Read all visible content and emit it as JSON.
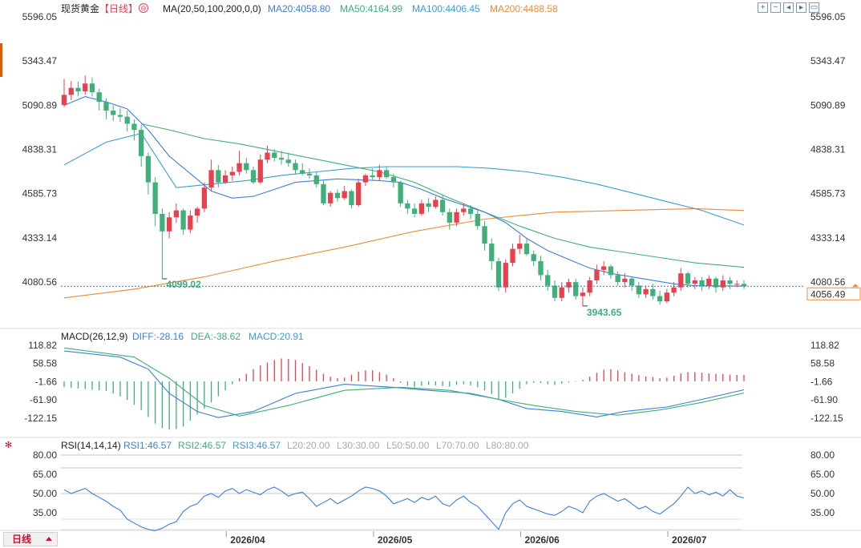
{
  "header": {
    "instrument": "现货黄金",
    "period_tag": "【日线】",
    "ma_params": "MA(20,50,100,200,0,0)",
    "ma20_label": "MA20:4058.80",
    "ma50_label": "MA50:4164.99",
    "ma100_label": "MA100:4406.45",
    "ma200_label": "MA200:4488.58"
  },
  "toolbar": [
    "plus-icon",
    "minus-icon",
    "left-icon",
    "right-icon",
    "fit-icon"
  ],
  "price_axis": {
    "ticks": [
      "5596.05",
      "5343.47",
      "5090.89",
      "4838.31",
      "4585.73",
      "4333.14",
      "4080.56"
    ],
    "current_price": "4056.49"
  },
  "annotations": {
    "low1": "4099.02",
    "low2": "3943.65"
  },
  "macd": {
    "params": "MACD(26,12,9)",
    "diff_label": "DIFF:-28.16",
    "dea_label": "DEA:-38.62",
    "macd_label": "MACD:20.91",
    "ticks": [
      "118.82",
      "58.58",
      "-1.66",
      "-61.90",
      "-122.15"
    ]
  },
  "rsi": {
    "params": "RSI(14,14,14)",
    "rsi1_label": "RSI1:46.57",
    "rsi2_label": "RSI2:46.57",
    "rsi3_label": "RSI3:46.57",
    "l20": "L20:20.00",
    "l30": "L30:30.00",
    "l50": "L50:50.00",
    "l70": "L70:70.00",
    "l80": "L80:80.00",
    "ticks": [
      "80.00",
      "65.00",
      "50.00",
      "35.00"
    ]
  },
  "x_axis": {
    "labels": [
      "2026/04",
      "2026/05",
      "2026/06",
      "2026/07"
    ]
  },
  "period_button": "日线",
  "colors": {
    "up": "#e8414e",
    "down": "#3fb07a",
    "ma20": "#3d7fd9",
    "ma50": "#3fae78",
    "ma100": "#3d9cd0",
    "ma200": "#ec8a3a",
    "diff": "#3d7fd9",
    "dea": "#3fae78",
    "rsi": "#3d7fd9"
  },
  "chart_data": [
    {
      "type": "candlestick",
      "title": "现货黄金 日线",
      "ylim": [
        3943.65,
        5596.05
      ],
      "y_ticks": [
        5596.05,
        5343.47,
        5090.89,
        4838.31,
        4585.73,
        4333.14,
        4080.56
      ],
      "x_labels": [
        "2026/04",
        "2026/05",
        "2026/06",
        "2026/07"
      ],
      "marked_lows": [
        4099.02,
        3943.65
      ],
      "last_price": 4056.49,
      "candles": [
        [
          5092,
          5150,
          5240,
          5080
        ],
        [
          5150,
          5190,
          5230,
          5120
        ],
        [
          5190,
          5170,
          5225,
          5140
        ],
        [
          5170,
          5215,
          5260,
          5150
        ],
        [
          5215,
          5165,
          5250,
          5140
        ],
        [
          5165,
          5110,
          5185,
          5060
        ],
        [
          5110,
          5060,
          5130,
          5010
        ],
        [
          5060,
          5035,
          5090,
          5000
        ],
        [
          5035,
          5025,
          5075,
          4995
        ],
        [
          5025,
          4985,
          5060,
          4940
        ],
        [
          4985,
          4950,
          5010,
          4890
        ],
        [
          4950,
          4800,
          4980,
          4740
        ],
        [
          4800,
          4650,
          4820,
          4580
        ],
        [
          4650,
          4470,
          4680,
          4400
        ],
        [
          4470,
          4370,
          4500,
          4099
        ],
        [
          4370,
          4450,
          4480,
          4330
        ],
        [
          4450,
          4490,
          4530,
          4420
        ],
        [
          4490,
          4380,
          4500,
          4350
        ],
        [
          4380,
          4460,
          4490,
          4360
        ],
        [
          4460,
          4500,
          4510,
          4420
        ],
        [
          4500,
          4620,
          4650,
          4480
        ],
        [
          4620,
          4720,
          4780,
          4600
        ],
        [
          4720,
          4650,
          4750,
          4620
        ],
        [
          4650,
          4690,
          4720,
          4640
        ],
        [
          4690,
          4710,
          4740,
          4660
        ],
        [
          4710,
          4760,
          4830,
          4690
        ],
        [
          4760,
          4720,
          4790,
          4700
        ],
        [
          4720,
          4650,
          4740,
          4640
        ],
        [
          4650,
          4780,
          4810,
          4640
        ],
        [
          4780,
          4820,
          4860,
          4760
        ],
        [
          4820,
          4790,
          4840,
          4770
        ],
        [
          4790,
          4780,
          4830,
          4750
        ],
        [
          4780,
          4760,
          4820,
          4740
        ],
        [
          4760,
          4720,
          4780,
          4700
        ],
        [
          4720,
          4700,
          4760,
          4690
        ],
        [
          4700,
          4690,
          4730,
          4670
        ],
        [
          4690,
          4640,
          4710,
          4620
        ],
        [
          4640,
          4530,
          4660,
          4520
        ],
        [
          4530,
          4590,
          4600,
          4510
        ],
        [
          4590,
          4560,
          4610,
          4540
        ],
        [
          4560,
          4600,
          4630,
          4550
        ],
        [
          4600,
          4520,
          4610,
          4500
        ],
        [
          4520,
          4650,
          4670,
          4510
        ],
        [
          4650,
          4690,
          4700,
          4630
        ],
        [
          4690,
          4680,
          4730,
          4660
        ],
        [
          4680,
          4720,
          4750,
          4660
        ],
        [
          4720,
          4680,
          4740,
          4670
        ],
        [
          4680,
          4650,
          4700,
          4620
        ],
        [
          4650,
          4530,
          4660,
          4510
        ],
        [
          4530,
          4500,
          4550,
          4470
        ],
        [
          4500,
          4470,
          4530,
          4450
        ],
        [
          4470,
          4530,
          4550,
          4460
        ],
        [
          4530,
          4510,
          4560,
          4480
        ],
        [
          4510,
          4550,
          4570,
          4500
        ],
        [
          4550,
          4480,
          4580,
          4460
        ],
        [
          4480,
          4420,
          4500,
          4380
        ],
        [
          4420,
          4480,
          4500,
          4400
        ],
        [
          4480,
          4500,
          4530,
          4460
        ],
        [
          4500,
          4470,
          4520,
          4440
        ],
        [
          4470,
          4400,
          4500,
          4380
        ],
        [
          4400,
          4300,
          4430,
          4260
        ],
        [
          4300,
          4200,
          4330,
          4150
        ],
        [
          4200,
          4050,
          4220,
          4030
        ],
        [
          4050,
          4190,
          4210,
          4020
        ],
        [
          4190,
          4270,
          4300,
          4170
        ],
        [
          4270,
          4300,
          4350,
          4240
        ],
        [
          4300,
          4240,
          4330,
          4230
        ],
        [
          4240,
          4200,
          4260,
          4170
        ],
        [
          4200,
          4120,
          4230,
          4090
        ],
        [
          4120,
          4060,
          4150,
          4030
        ],
        [
          4060,
          3990,
          4090,
          3970
        ],
        [
          3990,
          4050,
          4080,
          3970
        ],
        [
          4050,
          4080,
          4100,
          4020
        ],
        [
          4080,
          4000,
          4100,
          3980
        ],
        [
          4000,
          4020,
          4050,
          3943.65
        ],
        [
          4020,
          4090,
          4110,
          4000
        ],
        [
          4090,
          4150,
          4180,
          4070
        ],
        [
          4150,
          4170,
          4200,
          4120
        ],
        [
          4170,
          4120,
          4180,
          4100
        ],
        [
          4120,
          4080,
          4140,
          4060
        ],
        [
          4080,
          4100,
          4130,
          4050
        ],
        [
          4100,
          4060,
          4110,
          4030
        ],
        [
          4060,
          4010,
          4080,
          3990
        ],
        [
          4010,
          4040,
          4060,
          3990
        ],
        [
          4040,
          4000,
          4070,
          3980
        ],
        [
          4000,
          3970,
          4030,
          3950
        ],
        [
          3970,
          4020,
          4040,
          3960
        ],
        [
          4020,
          4050,
          4080,
          4000
        ],
        [
          4050,
          4130,
          4160,
          4030
        ],
        [
          4130,
          4070,
          4140,
          4050
        ],
        [
          4070,
          4090,
          4110,
          4040
        ],
        [
          4090,
          4060,
          4110,
          4030
        ],
        [
          4060,
          4100,
          4120,
          4040
        ],
        [
          4100,
          4050,
          4110,
          4020
        ],
        [
          4050,
          4090,
          4120,
          4030
        ],
        [
          4090,
          4070,
          4110,
          4040
        ],
        [
          4070,
          4070,
          4090,
          4050
        ],
        [
          4070,
          4056.49,
          4090,
          4040
        ]
      ],
      "ma20": [
        [
          0,
          5090
        ],
        [
          3,
          5140
        ],
        [
          6,
          5110
        ],
        [
          9,
          5070
        ],
        [
          12,
          4950
        ],
        [
          15,
          4800
        ],
        [
          18,
          4700
        ],
        [
          21,
          4600
        ],
        [
          24,
          4560
        ],
        [
          27,
          4570
        ],
        [
          30,
          4610
        ],
        [
          33,
          4650
        ],
        [
          36,
          4660
        ],
        [
          39,
          4670
        ],
        [
          42,
          4665
        ],
        [
          45,
          4660
        ],
        [
          48,
          4650
        ],
        [
          51,
          4610
        ],
        [
          54,
          4560
        ],
        [
          57,
          4520
        ],
        [
          60,
          4480
        ],
        [
          63,
          4420
        ],
        [
          66,
          4330
        ],
        [
          69,
          4260
        ],
        [
          72,
          4210
        ],
        [
          75,
          4160
        ],
        [
          78,
          4130
        ],
        [
          81,
          4110
        ],
        [
          84,
          4090
        ],
        [
          87,
          4070
        ],
        [
          90,
          4060
        ],
        [
          93,
          4058
        ],
        [
          97,
          4058
        ]
      ],
      "ma50": [
        [
          11,
          4985
        ],
        [
          15,
          4950
        ],
        [
          20,
          4900
        ],
        [
          25,
          4870
        ],
        [
          30,
          4830
        ],
        [
          35,
          4790
        ],
        [
          40,
          4750
        ],
        [
          45,
          4710
        ],
        [
          50,
          4650
        ],
        [
          55,
          4560
        ],
        [
          60,
          4480
        ],
        [
          65,
          4400
        ],
        [
          70,
          4330
        ],
        [
          75,
          4280
        ],
        [
          80,
          4250
        ],
        [
          85,
          4220
        ],
        [
          90,
          4190
        ],
        [
          97,
          4165
        ]
      ],
      "ma100": [
        [
          0,
          4750
        ],
        [
          6,
          4880
        ],
        [
          11,
          4930
        ],
        [
          16,
          4620
        ],
        [
          21,
          4640
        ],
        [
          26,
          4660
        ],
        [
          31,
          4690
        ],
        [
          36,
          4710
        ],
        [
          41,
          4730
        ],
        [
          46,
          4740
        ],
        [
          51,
          4740
        ],
        [
          56,
          4740
        ],
        [
          61,
          4730
        ],
        [
          66,
          4710
        ],
        [
          71,
          4680
        ],
        [
          76,
          4640
        ],
        [
          81,
          4590
        ],
        [
          86,
          4540
        ],
        [
          91,
          4490
        ],
        [
          97,
          4406
        ]
      ],
      "ma200": [
        [
          0,
          3990
        ],
        [
          10,
          4040
        ],
        [
          20,
          4110
        ],
        [
          30,
          4200
        ],
        [
          40,
          4280
        ],
        [
          50,
          4370
        ],
        [
          60,
          4440
        ],
        [
          70,
          4480
        ],
        [
          80,
          4490
        ],
        [
          90,
          4500
        ],
        [
          97,
          4489
        ]
      ]
    },
    {
      "type": "bar",
      "title": "MACD(26,12,9)",
      "ylim": [
        -160,
        140
      ],
      "y_ticks": [
        118.82,
        58.58,
        -1.66,
        -61.9,
        -122.15
      ],
      "macd": [
        -20,
        -22,
        -24,
        -26,
        -28,
        -30,
        -32,
        -40,
        -50,
        -62,
        -78,
        -95,
        -118,
        -140,
        -155,
        -160,
        -158,
        -150,
        -130,
        -110,
        -90,
        -70,
        -50,
        -30,
        -10,
        10,
        25,
        40,
        52,
        62,
        70,
        75,
        74,
        70,
        60,
        50,
        38,
        25,
        15,
        10,
        12,
        22,
        32,
        36,
        36,
        30,
        22,
        10,
        -5,
        -15,
        -20,
        -15,
        -12,
        -14,
        -16,
        -18,
        -12,
        -10,
        -14,
        -20,
        -30,
        -42,
        -60,
        -55,
        -40,
        -25,
        -10,
        -5,
        -6,
        -10,
        -12,
        -8,
        -4,
        -2,
        5,
        15,
        28,
        38,
        40,
        36,
        30,
        25,
        20,
        16,
        14,
        10,
        12,
        18,
        26,
        30,
        30,
        28,
        26,
        25,
        24,
        22,
        21,
        20.91
      ],
      "diff": [
        [
          0,
          100
        ],
        [
          8,
          80
        ],
        [
          12,
          40
        ],
        [
          15,
          -40
        ],
        [
          19,
          -100
        ],
        [
          22,
          -120
        ],
        [
          27,
          -100
        ],
        [
          33,
          -40
        ],
        [
          40,
          -10
        ],
        [
          47,
          -20
        ],
        [
          52,
          -30
        ],
        [
          58,
          -40
        ],
        [
          62,
          -60
        ],
        [
          66,
          -90
        ],
        [
          71,
          -100
        ],
        [
          76,
          -118
        ],
        [
          80,
          -100
        ],
        [
          86,
          -85
        ],
        [
          91,
          -60
        ],
        [
          97,
          -28.16
        ]
      ],
      "dea": [
        [
          0,
          110
        ],
        [
          10,
          80
        ],
        [
          15,
          10
        ],
        [
          20,
          -80
        ],
        [
          25,
          -115
        ],
        [
          32,
          -80
        ],
        [
          40,
          -30
        ],
        [
          48,
          -20
        ],
        [
          55,
          -30
        ],
        [
          62,
          -60
        ],
        [
          67,
          -80
        ],
        [
          73,
          -100
        ],
        [
          79,
          -112
        ],
        [
          85,
          -95
        ],
        [
          91,
          -70
        ],
        [
          97,
          -38.62
        ]
      ]
    },
    {
      "type": "line",
      "title": "RSI(14,14,14)",
      "ylim": [
        20,
        82
      ],
      "y_ticks": [
        80,
        65,
        50,
        35
      ],
      "rsi": [
        53,
        50,
        52,
        54,
        50,
        47,
        44,
        40,
        37,
        30,
        27,
        24,
        22,
        21,
        23,
        26,
        28,
        36,
        40,
        42,
        48,
        50,
        47,
        52,
        54,
        50,
        53,
        51,
        49,
        53,
        55,
        52,
        48,
        50,
        51,
        46,
        40,
        43,
        46,
        42,
        45,
        48,
        52,
        55,
        54,
        52,
        48,
        42,
        44,
        46,
        43,
        47,
        45,
        48,
        42,
        40,
        45,
        48,
        43,
        40,
        34,
        28,
        22,
        35,
        42,
        45,
        40,
        38,
        36,
        34,
        33,
        36,
        40,
        38,
        35,
        44,
        48,
        50,
        47,
        44,
        46,
        42,
        38,
        40,
        36,
        34,
        38,
        42,
        48,
        55,
        50,
        52,
        49,
        51,
        48,
        53,
        48,
        46.57
      ]
    }
  ]
}
